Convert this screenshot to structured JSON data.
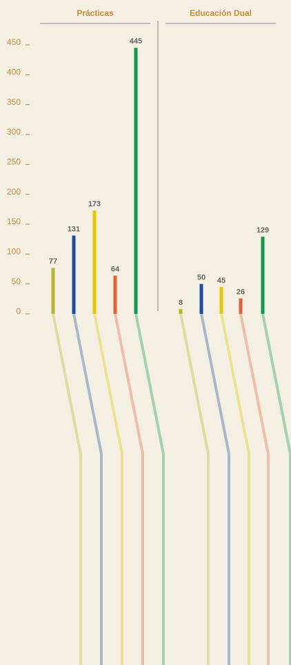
{
  "chart_data": {
    "type": "bar",
    "groups": [
      {
        "title": "Prácticas",
        "values": [
          77,
          131,
          173,
          64,
          445
        ]
      },
      {
        "title": "Educación Dual",
        "values": [
          8,
          50,
          45,
          26,
          129
        ]
      }
    ],
    "colors": [
      "#b4b82c",
      "#1b4f9c",
      "#e2c800",
      "#e8603a",
      "#0f9a4c"
    ],
    "ylim": [
      0,
      450
    ],
    "yticks": [
      0,
      50,
      100,
      150,
      200,
      250,
      300,
      350,
      400,
      450
    ]
  }
}
